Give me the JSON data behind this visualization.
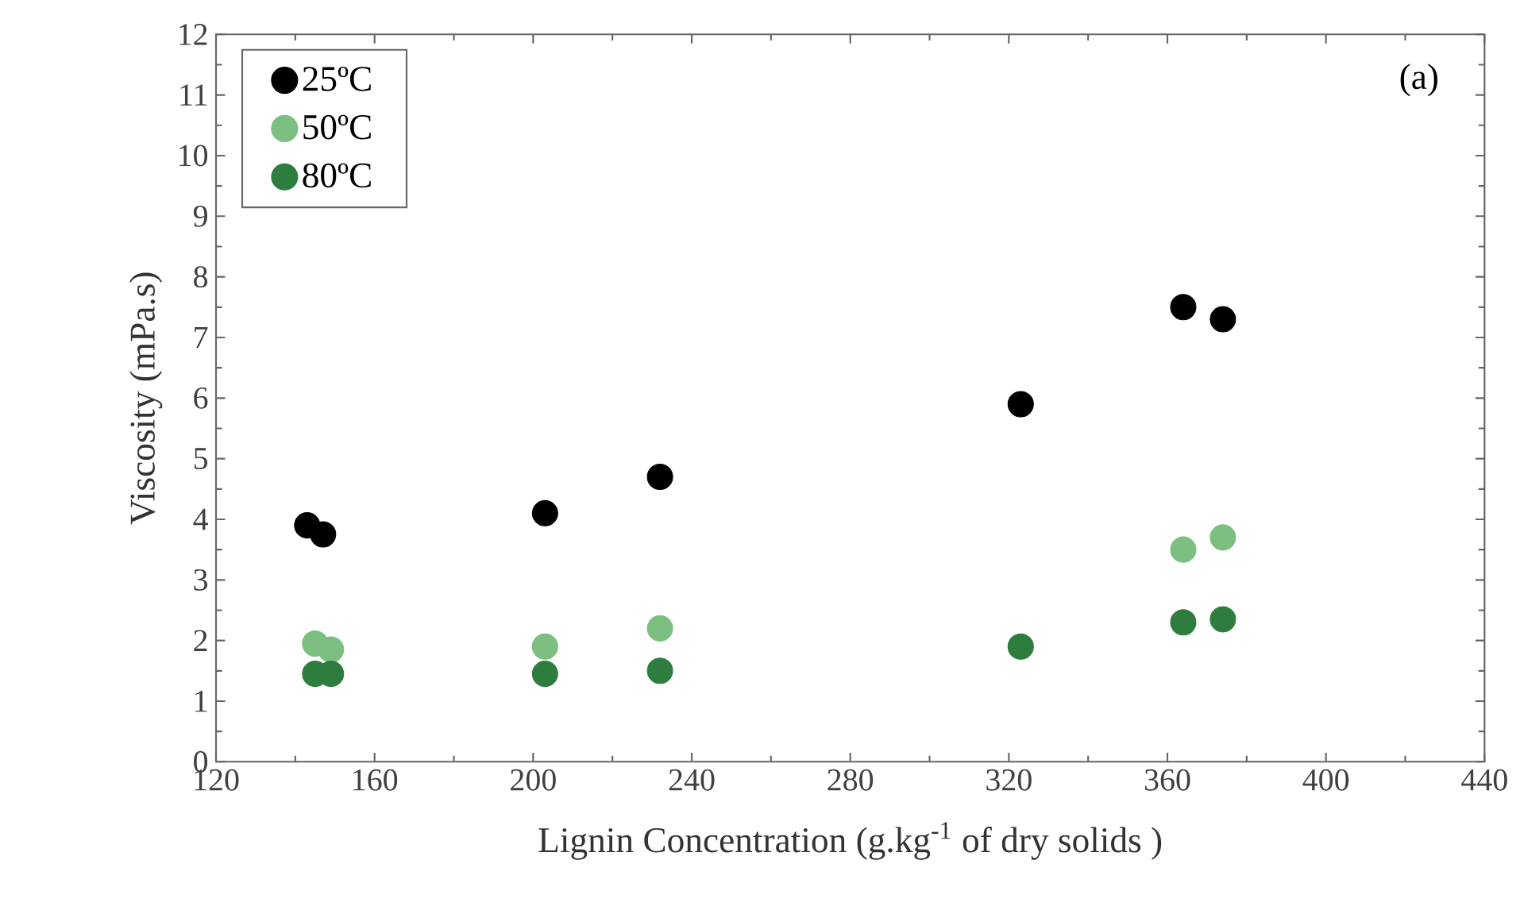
{
  "chart_data": {
    "type": "scatter",
    "xlabel": "Lignin Concentration (g.kg$^{-1}$ of dry solids )",
    "ylabel": "Viscosity (mPa.s)",
    "annotations": [
      "(a)"
    ],
    "xlim": [
      120,
      440
    ],
    "xticks": [
      120,
      160,
      200,
      240,
      280,
      320,
      360,
      400,
      440
    ],
    "ylim": [
      0,
      12
    ],
    "yticks": [
      0,
      1,
      2,
      3,
      4,
      5,
      6,
      7,
      8,
      9,
      10,
      11,
      12
    ],
    "grid": false,
    "legend": "top left",
    "marker": "circle",
    "series": [
      {
        "name": "25ºC",
        "color": "#000000",
        "x": [
          143,
          147,
          203,
          232,
          323,
          364,
          374
        ],
        "values": [
          3.9,
          3.75,
          4.1,
          4.7,
          5.9,
          7.5,
          7.3
        ]
      },
      {
        "name": "50ºC",
        "color": "#7cbf80",
        "x": [
          145,
          149,
          203,
          232,
          364,
          374
        ],
        "values": [
          1.95,
          1.85,
          1.9,
          2.2,
          3.5,
          3.7
        ]
      },
      {
        "name": "80ºC",
        "color": "#2e7d3e",
        "x": [
          145,
          149,
          203,
          232,
          323,
          364,
          374
        ],
        "values": [
          1.45,
          1.45,
          1.45,
          1.5,
          1.9,
          2.3,
          2.35
        ]
      }
    ]
  }
}
